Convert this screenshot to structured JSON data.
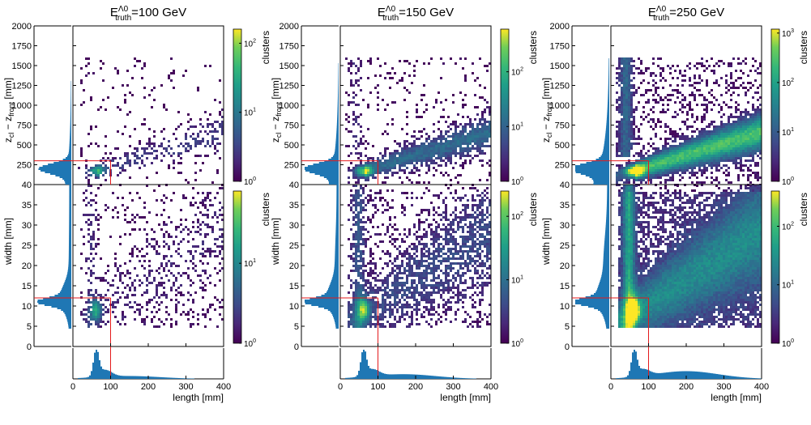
{
  "chart_data": [
    {
      "type": "heatmap",
      "title_main": "E",
      "title_sup": "Λ0",
      "title_sub": "truth",
      "title_value": "=100 GeV",
      "top_ylabel_main": "z",
      "top_ylabel_sub1": "cl",
      "top_ylabel_mid": " − z",
      "top_ylabel_sub2": "front",
      "top_ylabel_unit": "  [mm]",
      "top_yticks": [
        250,
        500,
        750,
        1000,
        1250,
        1500,
        1750,
        2000
      ],
      "top_ylim": [
        0,
        2000
      ],
      "bottom_ylabel": "width  [mm]",
      "bottom_yticks": [
        0,
        5,
        10,
        15,
        20,
        25,
        30,
        35,
        40
      ],
      "bottom_ylim": [
        0,
        40
      ],
      "xlabel": "length [mm]",
      "xticks": [
        0,
        100,
        200,
        300,
        400
      ],
      "xlim": [
        0,
        400
      ],
      "colorbar_label": "clusters",
      "colorbar_top": {
        "min": 1,
        "max": 160,
        "ticks": [
          "10^0",
          "10^1",
          "10^2"
        ]
      },
      "colorbar_bottom": {
        "min": 1,
        "max": 80,
        "ticks": [
          "10^0",
          "10^1"
        ]
      },
      "cut_lines": {
        "length": 100,
        "width": 12,
        "z": 300
      },
      "peak": {
        "length": 62,
        "width": 9,
        "z": 170
      },
      "spread": 0.12
    },
    {
      "type": "heatmap",
      "title_main": "E",
      "title_sup": "Λ0",
      "title_sub": "truth",
      "title_value": "=150 GeV",
      "top_ylabel_main": "z",
      "top_ylabel_sub1": "cl",
      "top_ylabel_mid": " − z",
      "top_ylabel_sub2": "front",
      "top_ylabel_unit": "  [mm]",
      "top_yticks": [
        250,
        500,
        750,
        1000,
        1250,
        1500,
        1750,
        2000
      ],
      "top_ylim": [
        0,
        2000
      ],
      "bottom_ylabel": "width  [mm]",
      "bottom_yticks": [
        0,
        5,
        10,
        15,
        20,
        25,
        30,
        35,
        40
      ],
      "bottom_ylim": [
        0,
        40
      ],
      "xlabel": "length [mm]",
      "xticks": [
        0,
        100,
        200,
        300,
        400
      ],
      "xlim": [
        0,
        400
      ],
      "colorbar_label": "clusters",
      "colorbar_top": {
        "min": 1,
        "max": 600,
        "ticks": [
          "10^0",
          "10^1",
          "10^2"
        ]
      },
      "colorbar_bottom": {
        "min": 1,
        "max": 250,
        "ticks": [
          "10^0",
          "10^1",
          "10^2"
        ]
      },
      "cut_lines": {
        "length": 100,
        "width": 12,
        "z": 300
      },
      "peak": {
        "length": 62,
        "width": 9,
        "z": 170
      },
      "spread": 0.45
    },
    {
      "type": "heatmap",
      "title_main": "E",
      "title_sup": "Λ0",
      "title_sub": "truth",
      "title_value": "=250 GeV",
      "top_ylabel_main": "z",
      "top_ylabel_sub1": "cl",
      "top_ylabel_mid": " − z",
      "top_ylabel_sub2": "front",
      "top_ylabel_unit": "  [mm]",
      "top_yticks": [
        250,
        500,
        750,
        1000,
        1250,
        1500,
        1750,
        2000
      ],
      "top_ylim": [
        0,
        2000
      ],
      "bottom_ylabel": "width  [mm]",
      "bottom_yticks": [
        0,
        5,
        10,
        15,
        20,
        25,
        30,
        35,
        40
      ],
      "bottom_ylim": [
        0,
        40
      ],
      "xlabel": "length [mm]",
      "xticks": [
        0,
        100,
        200,
        300,
        400
      ],
      "xlim": [
        0,
        400
      ],
      "colorbar_label": "clusters",
      "colorbar_top": {
        "min": 1,
        "max": 1200,
        "ticks": [
          "10^0",
          "10^1",
          "10^2",
          "10^3"
        ]
      },
      "colorbar_bottom": {
        "min": 1,
        "max": 400,
        "ticks": [
          "10^0",
          "10^1",
          "10^2"
        ]
      },
      "cut_lines": {
        "length": 100,
        "width": 12,
        "z": 300
      },
      "peak": {
        "length": 62,
        "width": 9,
        "z": 170
      },
      "spread": 1.0
    }
  ],
  "colors": {
    "hist": "#1f77b4",
    "cut": "#e41a1c"
  }
}
